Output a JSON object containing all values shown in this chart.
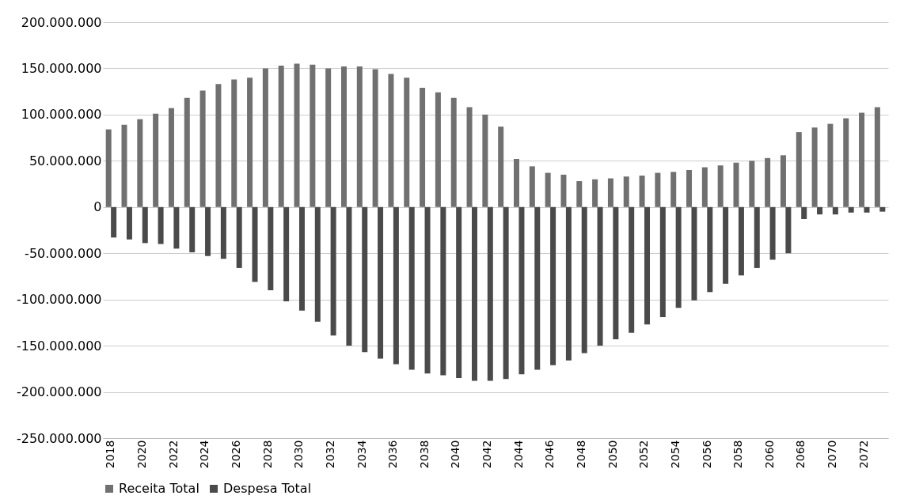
{
  "chart_data": {
    "type": "bar",
    "categories": [
      "2018",
      null,
      "2020",
      null,
      "2022",
      null,
      "2024",
      null,
      "2026",
      null,
      "2028",
      null,
      "2030",
      null,
      "2032",
      null,
      "2034",
      null,
      "2036",
      null,
      "2038",
      null,
      "2040",
      null,
      "2042",
      null,
      "2044",
      null,
      "2046",
      null,
      "2048",
      null,
      "2050",
      null,
      "2052",
      null,
      "2054",
      null,
      "2056",
      null,
      "2058",
      null,
      "2060",
      null,
      "2068",
      null,
      "2070",
      null,
      "2072",
      null
    ],
    "series": [
      {
        "name": "Receita Total",
        "color": "#707070",
        "values": [
          84000000,
          89000000,
          95000000,
          101000000,
          107000000,
          118000000,
          126000000,
          133000000,
          138000000,
          140000000,
          150000000,
          153000000,
          155000000,
          154000000,
          150000000,
          152000000,
          152000000,
          149000000,
          144000000,
          140000000,
          129000000,
          124000000,
          118000000,
          108000000,
          100000000,
          87000000,
          52000000,
          44000000,
          37000000,
          35000000,
          28000000,
          30000000,
          31000000,
          33000000,
          34000000,
          37000000,
          38000000,
          40000000,
          43000000,
          45000000,
          48000000,
          50000000,
          53000000,
          56000000,
          81000000,
          86000000,
          90000000,
          96000000,
          102000000,
          108000000
        ]
      },
      {
        "name": "Despesa Total",
        "color": "#4a4a4a",
        "values": [
          -33000000,
          -35000000,
          -39000000,
          -40000000,
          -45000000,
          -49000000,
          -53000000,
          -56000000,
          -66000000,
          -81000000,
          -90000000,
          -102000000,
          -112000000,
          -124000000,
          -139000000,
          -150000000,
          -157000000,
          -164000000,
          -170000000,
          -176000000,
          -180000000,
          -182000000,
          -185000000,
          -188000000,
          -188000000,
          -186000000,
          -181000000,
          -176000000,
          -171000000,
          -166000000,
          -158000000,
          -150000000,
          -143000000,
          -136000000,
          -127000000,
          -119000000,
          -109000000,
          -101000000,
          -92000000,
          -83000000,
          -74000000,
          -66000000,
          -57000000,
          -50000000,
          -13000000,
          -8000000,
          -8000000,
          -6000000,
          -6000000,
          -5000000
        ]
      }
    ],
    "ylim": [
      -250000000,
      200000000
    ],
    "yticks": [
      {
        "value": -250000000,
        "label": "-250.000.000"
      },
      {
        "value": -200000000,
        "label": "-200.000.000"
      },
      {
        "value": -150000000,
        "label": "-150.000.000"
      },
      {
        "value": -100000000,
        "label": "-100.000.000"
      },
      {
        "value": -50000000,
        "label": "-50.000.000"
      },
      {
        "value": 0,
        "label": "0"
      },
      {
        "value": 50000000,
        "label": "50.000.000"
      },
      {
        "value": 100000000,
        "label": "100.000.000"
      },
      {
        "value": 150000000,
        "label": "150.000.000"
      },
      {
        "value": 200000000,
        "label": "200.000.000"
      }
    ],
    "grid": "y",
    "legend": "bottom"
  }
}
